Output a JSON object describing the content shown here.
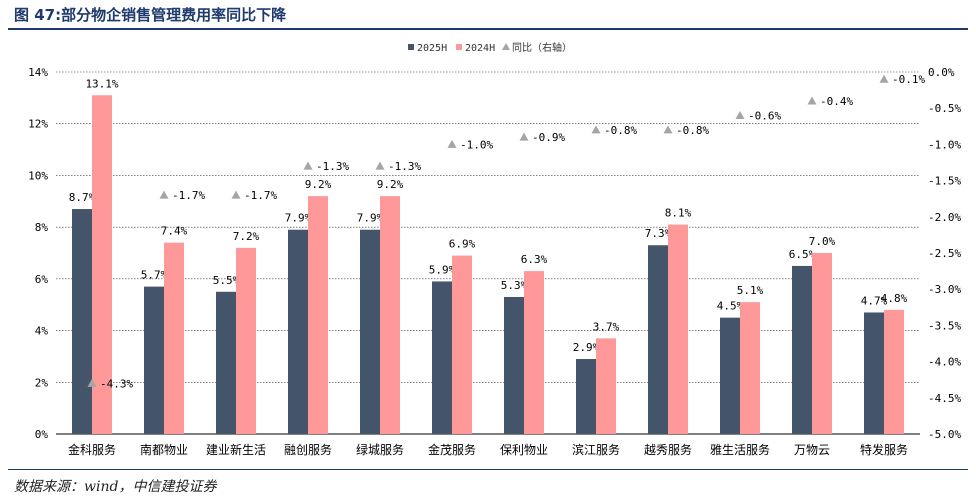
{
  "figure_title": "图 47:部分物企销售管理费用率同比下降",
  "source": "数据来源：wind，中信建投证券",
  "chart_data": {
    "type": "bar",
    "title": "部分物企销售管理费用率同比下降",
    "categories": [
      "金科服务",
      "南都物业",
      "建业新生活",
      "融创服务",
      "绿城服务",
      "金茂服务",
      "保利物业",
      "滨江服务",
      "越秀服务",
      "雅生活服务",
      "万物云",
      "特发服务"
    ],
    "series": [
      {
        "name": "2025H",
        "axis": "left",
        "color": "#44546a",
        "values": [
          8.7,
          5.7,
          5.5,
          7.9,
          7.9,
          5.9,
          5.3,
          2.9,
          7.3,
          4.5,
          6.5,
          4.7
        ],
        "labels": [
          "8.7%",
          "5.7%",
          "5.5%",
          "7.9%",
          "7.9%",
          "5.9%",
          "5.3%",
          "2.9%",
          "7.3%",
          "4.5%",
          "6.5%",
          "4.7%"
        ]
      },
      {
        "name": "2024H",
        "axis": "left",
        "color": "#ff9999",
        "values": [
          13.1,
          7.4,
          7.2,
          9.2,
          9.2,
          6.9,
          6.3,
          3.7,
          8.1,
          5.1,
          7.0,
          4.8
        ],
        "labels": [
          "13.1%",
          "7.4%",
          "7.2%",
          "9.2%",
          "9.2%",
          "6.9%",
          "6.3%",
          "3.7%",
          "8.1%",
          "5.1%",
          "7.0%",
          "4.8%"
        ]
      },
      {
        "name": "同比（右轴）",
        "axis": "right",
        "marker": "triangle",
        "color": "#a5a5a5",
        "values": [
          -4.3,
          -1.7,
          -1.7,
          -1.3,
          -1.3,
          -1.0,
          -0.9,
          -0.8,
          -0.8,
          -0.6,
          -0.4,
          -0.1
        ],
        "labels": [
          "-4.3%",
          "-1.7%",
          "-1.7%",
          "-1.3%",
          "-1.3%",
          "-1.0%",
          "-0.9%",
          "-0.8%",
          "-0.8%",
          "-0.6%",
          "-0.4%",
          "-0.1%"
        ]
      }
    ],
    "ylim": [
      0,
      14
    ],
    "yticks": [
      0,
      2,
      4,
      6,
      8,
      10,
      12,
      14
    ],
    "ytick_labels": [
      "0%",
      "2%",
      "4%",
      "6%",
      "8%",
      "10%",
      "12%",
      "14%"
    ],
    "y2lim": [
      -5.0,
      0.0
    ],
    "y2ticks": [
      0.0,
      -0.5,
      -1.0,
      -1.5,
      -2.0,
      -2.5,
      -3.0,
      -3.5,
      -4.0,
      -4.5,
      -5.0
    ],
    "y2tick_labels": [
      "0.0%",
      "-0.5%",
      "-1.0%",
      "-1.5%",
      "-2.0%",
      "-2.5%",
      "-3.0%",
      "-3.5%",
      "-4.0%",
      "-4.5%",
      "-5.0%"
    ],
    "legend": [
      "2025H",
      "2024H",
      "同比（右轴）"
    ],
    "legend_position": "top",
    "grid": true
  }
}
